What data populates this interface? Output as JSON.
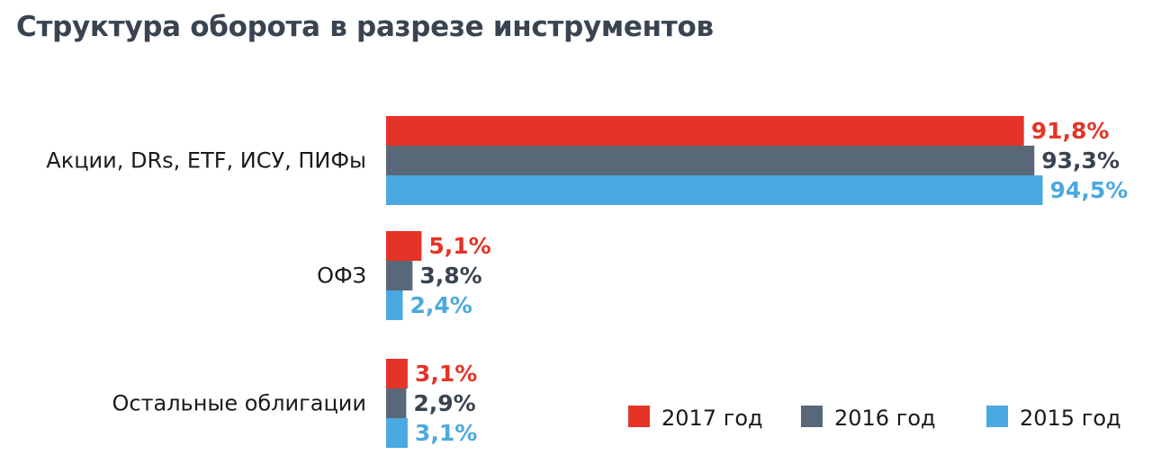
{
  "chart_data": {
    "type": "bar",
    "orientation": "horizontal",
    "title": "Структура оборота в разрезе инструментов",
    "categories": [
      "Акции, DRs, ETF, ИСУ, ПИФы",
      "ОФЗ",
      "Остальные облигации"
    ],
    "series": [
      {
        "name": "2017 год",
        "color": "#e53427",
        "values": [
          91.8,
          5.1,
          3.1
        ],
        "labels": [
          "91,8%",
          "5,1%",
          "3,1%"
        ]
      },
      {
        "name": "2016 год",
        "color": "#596878",
        "values": [
          93.3,
          3.8,
          2.9
        ],
        "labels": [
          "93,3%",
          "3,8%",
          "2,9%"
        ]
      },
      {
        "name": "2015 год",
        "color": "#4aa9e0",
        "values": [
          94.5,
          2.4,
          3.1
        ],
        "labels": [
          "94,5%",
          "2,4%",
          "3,1%"
        ]
      }
    ],
    "xlim": [
      0,
      100
    ],
    "unit": "%",
    "grid": false,
    "legend_position": "bottom-right"
  },
  "label_colors": [
    "#e53427",
    "#3a4451",
    "#4aa9e0"
  ]
}
